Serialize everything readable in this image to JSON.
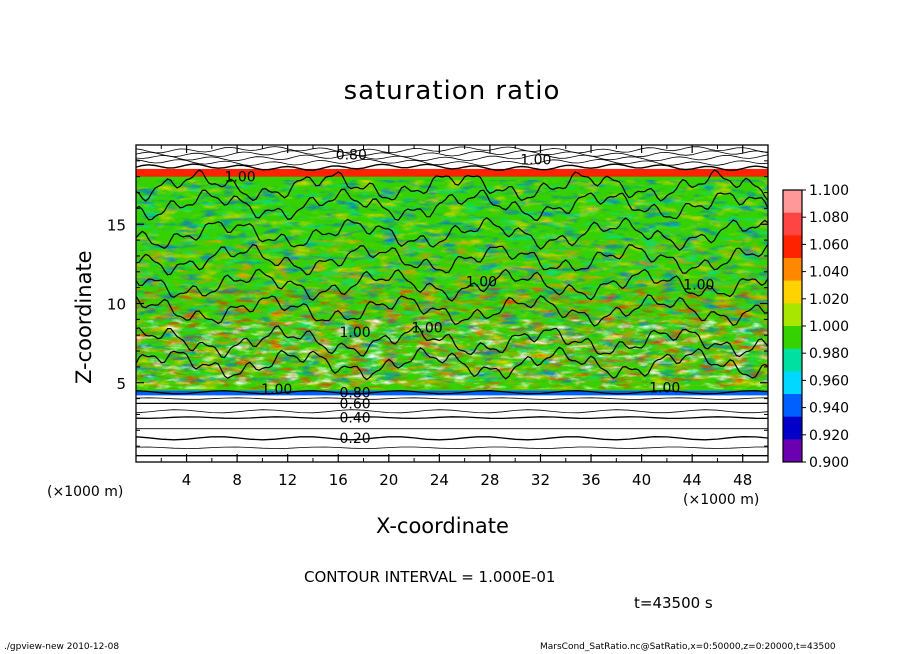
{
  "chart_data": {
    "type": "heatmap",
    "title": "saturation ratio",
    "xlabel": "X-coordinate",
    "ylabel": "Z-coordinate",
    "x_unit_left": "(×1000 m)",
    "x_unit_right": "(×1000 m)",
    "xlim": [
      0,
      50
    ],
    "ylim": [
      0,
      20
    ],
    "x_ticks": [
      4,
      8,
      12,
      16,
      20,
      24,
      28,
      32,
      36,
      40,
      44,
      48
    ],
    "y_ticks": [
      5,
      10,
      15
    ],
    "colorbar": {
      "min": 0.9,
      "max": 1.1,
      "labels": [
        "1.100",
        "1.080",
        "1.060",
        "1.040",
        "1.020",
        "1.000",
        "0.980",
        "0.960",
        "0.940",
        "0.920",
        "0.900"
      ],
      "colors": [
        "#ff9999",
        "#ff4444",
        "#ff2200",
        "#ff8800",
        "#ffd200",
        "#a8e600",
        "#35d200",
        "#00e0a0",
        "#00d8ff",
        "#0060ff",
        "#0000c8",
        "#6a00b0"
      ]
    },
    "contour_labels": [
      {
        "text": "0.20",
        "x": 16.1,
        "z": 1.5
      },
      {
        "text": "0.40",
        "x": 16.1,
        "z": 2.8
      },
      {
        "text": "0.60",
        "x": 16.1,
        "z": 3.7
      },
      {
        "text": "0.80",
        "x": 16.1,
        "z": 4.4
      },
      {
        "text": "1.00",
        "x": 9.9,
        "z": 4.6
      },
      {
        "text": "1.00",
        "x": 40.6,
        "z": 4.7
      },
      {
        "text": "1.00",
        "x": 16.1,
        "z": 8.2
      },
      {
        "text": "1.00",
        "x": 21.8,
        "z": 8.5
      },
      {
        "text": "1.00",
        "x": 26.1,
        "z": 11.4
      },
      {
        "text": "1.00",
        "x": 43.3,
        "z": 11.2
      },
      {
        "text": "1.00",
        "x": 7.0,
        "z": 18.0
      },
      {
        "text": "1.00",
        "x": 30.4,
        "z": 19.1
      },
      {
        "text": "0.80",
        "x": 15.8,
        "z": 19.4
      }
    ]
  },
  "contour_interval": "CONTOUR INTERVAL = 1.000E-01",
  "time_label": "t=43500 s",
  "footer_left": "./gpview-new   2010-12-08",
  "footer_right": "MarsCond_SatRatio.nc@SatRatio,x=0:50000,z=0:20000,t=43500"
}
